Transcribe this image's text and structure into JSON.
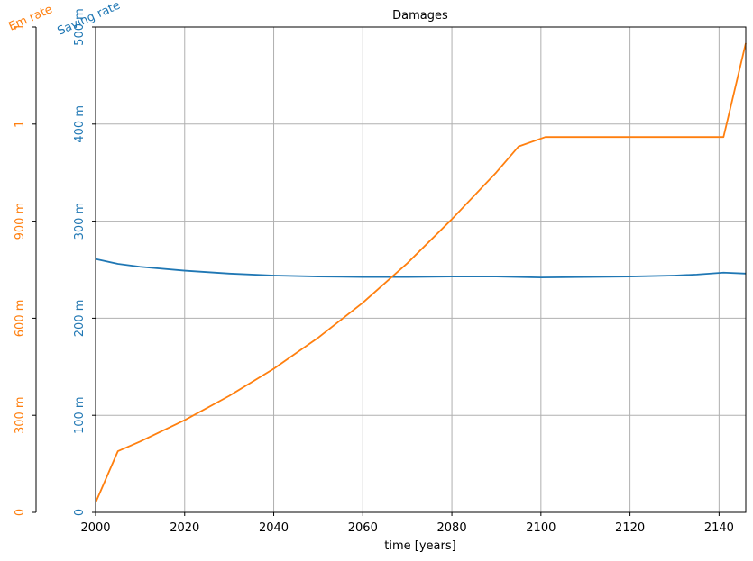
{
  "colors": {
    "saving": "#1f77b4",
    "em": "#ff7f0e",
    "grid": "#b0b0b0",
    "axis": "#000000"
  },
  "chart_data": {
    "type": "line",
    "title": "Damages",
    "xlabel": "time [years]",
    "xlim": [
      2000,
      2146
    ],
    "x_ticks": [
      {
        "v": 2000,
        "label": "2000"
      },
      {
        "v": 2020,
        "label": "2020"
      },
      {
        "v": 2040,
        "label": "2040"
      },
      {
        "v": 2060,
        "label": "2060"
      },
      {
        "v": 2080,
        "label": "2080"
      },
      {
        "v": 2100,
        "label": "2100"
      },
      {
        "v": 2120,
        "label": "2120"
      },
      {
        "v": 2140,
        "label": "2140"
      }
    ],
    "saving_axis": {
      "label": "Saving rate",
      "ylim": [
        0,
        0.5
      ],
      "ticks": [
        {
          "v": 0,
          "label": "0"
        },
        {
          "v": 0.1,
          "label": "100 m"
        },
        {
          "v": 0.2,
          "label": "200 m"
        },
        {
          "v": 0.3,
          "label": "300 m"
        },
        {
          "v": 0.4,
          "label": "400 m"
        },
        {
          "v": 0.5,
          "label": "500 m"
        }
      ]
    },
    "em_axis": {
      "label": "Em rate",
      "ylim": [
        0,
        1.5
      ],
      "ticks": [
        {
          "v": 0,
          "label": "0"
        },
        {
          "v": 0.3,
          "label": "300 m"
        },
        {
          "v": 0.6,
          "label": "600 m"
        },
        {
          "v": 0.9,
          "label": "900 m"
        },
        {
          "v": 1.2,
          "label": "1"
        },
        {
          "v": 1.5,
          "label": "1"
        }
      ]
    },
    "series": [
      {
        "name": "Saving rate",
        "axis": "saving_axis",
        "x": [
          2000,
          2005,
          2010,
          2020,
          2030,
          2040,
          2050,
          2060,
          2070,
          2080,
          2090,
          2100,
          2110,
          2120,
          2130,
          2135,
          2141,
          2146
        ],
        "values": [
          0.261,
          0.256,
          0.253,
          0.249,
          0.246,
          0.244,
          0.243,
          0.2425,
          0.2425,
          0.243,
          0.243,
          0.242,
          0.2425,
          0.243,
          0.244,
          0.245,
          0.247,
          0.246
        ]
      },
      {
        "name": "Em rate",
        "axis": "em_axis",
        "x": [
          2000,
          2005,
          2010,
          2020,
          2030,
          2040,
          2050,
          2060,
          2070,
          2080,
          2090,
          2095,
          2101,
          2110,
          2120,
          2130,
          2141,
          2146
        ],
        "values": [
          0.03,
          0.189,
          0.219,
          0.285,
          0.36,
          0.444,
          0.54,
          0.648,
          0.77,
          0.906,
          1.051,
          1.131,
          1.16,
          1.16,
          1.16,
          1.16,
          1.16,
          1.45
        ]
      }
    ]
  }
}
